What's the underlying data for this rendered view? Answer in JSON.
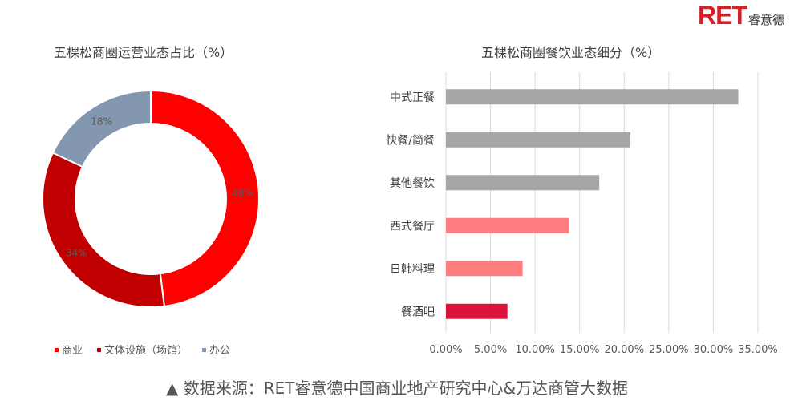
{
  "brand": {
    "logo_text": "RET",
    "company_cn": "睿意德",
    "colors": {
      "logo": "#d31f26"
    }
  },
  "footnote": "▲ 数据来源：RET睿意德中国商业地产研究中心&万达商管大数据",
  "chart_data": [
    {
      "type": "pie",
      "subtype": "donut",
      "title": "五棵松商圈运营业态占比（%）",
      "slices": [
        {
          "label": "商业",
          "value": 48,
          "display": "48%",
          "color": "#ff0000"
        },
        {
          "label": "文体设施（场馆）",
          "value": 34,
          "display": "34%",
          "color": "#c00000"
        },
        {
          "label": "办公",
          "value": 18,
          "display": "18%",
          "color": "#8497b0"
        }
      ],
      "legend": "bottom"
    },
    {
      "type": "bar",
      "orientation": "horizontal",
      "title": "五棵松商圈餐饮业态细分（%）",
      "categories": [
        "中式正餐",
        "快餐/简餐",
        "其他餐饮",
        "西式餐厅",
        "日韩料理",
        "餐酒吧"
      ],
      "values": [
        32.8,
        20.7,
        17.2,
        13.8,
        8.6,
        6.9
      ],
      "colors": [
        "#a6a6a6",
        "#a6a6a6",
        "#a6a6a6",
        "#ff7c80",
        "#ff7c80",
        "#dc143c"
      ],
      "x_ticks": [
        "0.00%",
        "5.00%",
        "10.00%",
        "15.00%",
        "20.00%",
        "25.00%",
        "30.00%",
        "35.00%"
      ],
      "xlim": [
        0,
        35
      ],
      "grid": true
    }
  ]
}
